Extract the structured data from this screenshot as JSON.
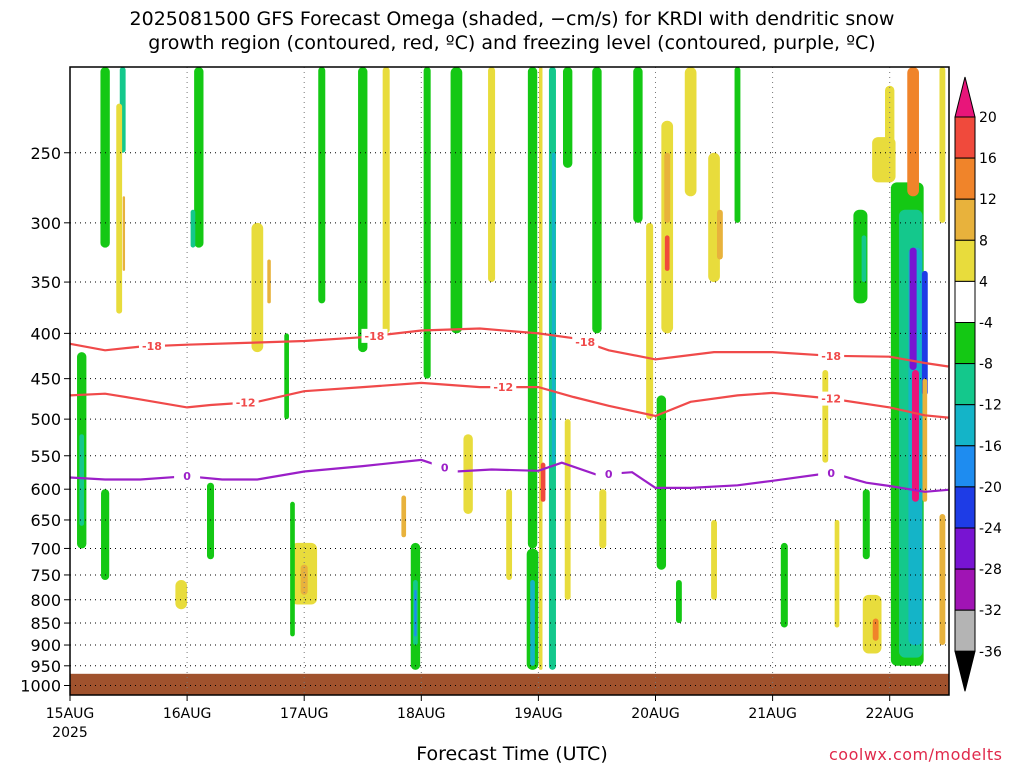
{
  "title_line1": "2025081500 GFS Forecast Omega (shaded, −cm/s) for KRDI with dendritic snow",
  "title_line2": "growth region (contoured, red, ºC) and freezing level (contoured, purple, ºC)",
  "credit": "coolwx.com/modelts",
  "chart_data": {
    "type": "heatmap",
    "title": "2025081500 GFS Forecast Omega (shaded, −cm/s) for KRDI with dendritic snow growth region (contoured, red, ºC) and freezing level (contoured, purple, ºC)",
    "xlabel": "Forecast Time (UTC)",
    "ylabel": "",
    "x_ticks": [
      "15AUG",
      "16AUG",
      "17AUG",
      "18AUG",
      "19AUG",
      "20AUG",
      "21AUG",
      "22AUG"
    ],
    "x_tick_sub": "2025",
    "x_range": [
      0,
      7.5
    ],
    "y_ticks": [
      250,
      300,
      350,
      400,
      450,
      500,
      550,
      600,
      650,
      700,
      750,
      800,
      850,
      900,
      950,
      1000
    ],
    "y_range_hPa": [
      200,
      1025
    ],
    "y_axis_reversed": true,
    "grid": "dotted",
    "colorbar": {
      "labels": [
        20,
        16,
        12,
        8,
        4,
        -4,
        -8,
        -12,
        -16,
        -20,
        -24,
        -28,
        -32,
        -36
      ],
      "bins": [
        {
          "min": 20,
          "max": null,
          "color": "#e8157a"
        },
        {
          "min": 16,
          "max": 20,
          "color": "#f04a3c"
        },
        {
          "min": 12,
          "max": 16,
          "color": "#f0842a"
        },
        {
          "min": 8,
          "max": 12,
          "color": "#e8b23c"
        },
        {
          "min": 4,
          "max": 8,
          "color": "#e8dc3c"
        },
        {
          "min": -4,
          "max": 4,
          "color": "#ffffff"
        },
        {
          "min": -8,
          "max": -4,
          "color": "#14c814"
        },
        {
          "min": -12,
          "max": -8,
          "color": "#14c88c"
        },
        {
          "min": -16,
          "max": -12,
          "color": "#14b4c8"
        },
        {
          "min": -20,
          "max": -16,
          "color": "#1e8cf0"
        },
        {
          "min": -24,
          "max": -20,
          "color": "#1e3ce6"
        },
        {
          "min": -28,
          "max": -24,
          "color": "#7814d2"
        },
        {
          "min": -32,
          "max": -28,
          "color": "#a014b4"
        },
        {
          "min": -36,
          "max": -32,
          "color": "#b4b4b4"
        },
        {
          "min": null,
          "max": -36,
          "color": "#000000"
        }
      ]
    },
    "ground_color": "#a0522d",
    "ground_pressure_hPa": 970,
    "contours": [
      {
        "name": "-18",
        "color": "#f04a4a",
        "days": [
          0,
          0.3,
          0.6,
          1.0,
          1.5,
          2.0,
          2.5,
          3.0,
          3.5,
          4.0,
          4.3,
          4.6,
          5.0,
          5.5,
          6.0,
          6.5,
          7.0,
          7.3,
          7.5
        ],
        "pressure_hPa": [
          411,
          418,
          414,
          412,
          410,
          408,
          404,
          397,
          395,
          400,
          405,
          418,
          428,
          420,
          420,
          424,
          425,
          432,
          436
        ],
        "labels": [
          {
            "day": 0.7,
            "text": "-18"
          },
          {
            "day": 2.6,
            "text": "-18"
          },
          {
            "day": 4.4,
            "text": "-18"
          },
          {
            "day": 6.5,
            "text": "-18"
          }
        ]
      },
      {
        "name": "-12",
        "color": "#f04a4a",
        "days": [
          0,
          0.3,
          0.6,
          1.0,
          1.2,
          1.6,
          2.0,
          2.5,
          3.0,
          3.5,
          4.0,
          4.3,
          4.6,
          5.0,
          5.3,
          5.7,
          6.0,
          6.5,
          7.0,
          7.3,
          7.5
        ],
        "pressure_hPa": [
          470,
          468,
          475,
          485,
          482,
          478,
          465,
          460,
          455,
          460,
          460,
          472,
          483,
          496,
          478,
          470,
          467,
          474,
          485,
          495,
          498
        ],
        "labels": [
          {
            "day": 1.5,
            "text": "-12"
          },
          {
            "day": 3.7,
            "text": "-12"
          },
          {
            "day": 6.5,
            "text": "-12"
          }
        ]
      },
      {
        "name": "0",
        "color": "#9b1fc8",
        "days": [
          0,
          0.3,
          0.6,
          1.0,
          1.3,
          1.6,
          2.0,
          2.5,
          3.0,
          3.3,
          3.6,
          4.0,
          4.2,
          4.5,
          4.8,
          5.0,
          5.3,
          5.7,
          6.0,
          6.5,
          6.8,
          7.0,
          7.3,
          7.5
        ],
        "pressure_hPa": [
          582,
          585,
          585,
          580,
          585,
          585,
          573,
          565,
          556,
          573,
          570,
          572,
          560,
          578,
          574,
          598,
          598,
          594,
          587,
          575,
          590,
          595,
          604,
          601
        ],
        "labels": [
          {
            "day": 1.0,
            "text": "0"
          },
          {
            "day": 3.2,
            "text": "0"
          },
          {
            "day": 4.6,
            "text": "0"
          },
          {
            "day": 6.5,
            "text": "0"
          }
        ]
      }
    ],
    "omega_features": [
      {
        "day": 0.1,
        "p_top": 420,
        "p_bot": 700,
        "width": 0.08,
        "bin": -8
      },
      {
        "day": 0.1,
        "p_top": 520,
        "p_bot": 660,
        "width": 0.04,
        "bin": -12
      },
      {
        "day": 0.3,
        "p_top": 200,
        "p_bot": 320,
        "width": 0.08,
        "bin": -8
      },
      {
        "day": 0.45,
        "p_top": 200,
        "p_bot": 250,
        "width": 0.05,
        "bin": -12
      },
      {
        "day": 0.3,
        "p_top": 600,
        "p_bot": 760,
        "width": 0.07,
        "bin": -8
      },
      {
        "day": 0.42,
        "p_top": 220,
        "p_bot": 380,
        "width": 0.05,
        "bin": 4
      },
      {
        "day": 0.46,
        "p_top": 280,
        "p_bot": 340,
        "width": 0.02,
        "bin": 8
      },
      {
        "day": 0.95,
        "p_top": 760,
        "p_bot": 820,
        "width": 0.1,
        "bin": 4
      },
      {
        "day": 1.1,
        "p_top": 200,
        "p_bot": 320,
        "width": 0.08,
        "bin": -8
      },
      {
        "day": 1.05,
        "p_top": 290,
        "p_bot": 320,
        "width": 0.04,
        "bin": -12
      },
      {
        "day": 1.2,
        "p_top": 590,
        "p_bot": 720,
        "width": 0.06,
        "bin": -8
      },
      {
        "day": 1.6,
        "p_top": 300,
        "p_bot": 420,
        "width": 0.1,
        "bin": 4
      },
      {
        "day": 1.7,
        "p_top": 330,
        "p_bot": 370,
        "width": 0.03,
        "bin": 8
      },
      {
        "day": 1.85,
        "p_top": 400,
        "p_bot": 500,
        "width": 0.04,
        "bin": -8
      },
      {
        "day": 2.15,
        "p_top": 200,
        "p_bot": 370,
        "width": 0.06,
        "bin": -8
      },
      {
        "day": 2.0,
        "p_top": 690,
        "p_bot": 810,
        "width": 0.22,
        "bin": 4
      },
      {
        "day": 2.0,
        "p_top": 730,
        "p_bot": 790,
        "width": 0.06,
        "bin": 8
      },
      {
        "day": 1.9,
        "p_top": 620,
        "p_bot": 880,
        "width": 0.04,
        "bin": -8
      },
      {
        "day": 2.5,
        "p_top": 200,
        "p_bot": 420,
        "width": 0.08,
        "bin": -8
      },
      {
        "day": 2.7,
        "p_top": 200,
        "p_bot": 400,
        "width": 0.06,
        "bin": 4
      },
      {
        "day": 2.95,
        "p_top": 690,
        "p_bot": 960,
        "width": 0.08,
        "bin": -8
      },
      {
        "day": 2.95,
        "p_top": 760,
        "p_bot": 900,
        "width": 0.04,
        "bin": -12
      },
      {
        "day": 2.95,
        "p_top": 780,
        "p_bot": 880,
        "width": 0.02,
        "bin": -20
      },
      {
        "day": 2.85,
        "p_top": 610,
        "p_bot": 680,
        "width": 0.04,
        "bin": 8
      },
      {
        "day": 3.05,
        "p_top": 200,
        "p_bot": 450,
        "width": 0.06,
        "bin": -8
      },
      {
        "day": 3.3,
        "p_top": 200,
        "p_bot": 400,
        "width": 0.1,
        "bin": -8
      },
      {
        "day": 3.4,
        "p_top": 520,
        "p_bot": 640,
        "width": 0.08,
        "bin": 4
      },
      {
        "day": 3.6,
        "p_top": 200,
        "p_bot": 350,
        "width": 0.06,
        "bin": 4
      },
      {
        "day": 3.75,
        "p_top": 600,
        "p_bot": 760,
        "width": 0.05,
        "bin": 4
      },
      {
        "day": 3.95,
        "p_top": 200,
        "p_bot": 700,
        "width": 0.08,
        "bin": -8
      },
      {
        "day": 3.95,
        "p_top": 700,
        "p_bot": 960,
        "width": 0.1,
        "bin": -8
      },
      {
        "day": 3.95,
        "p_top": 760,
        "p_bot": 950,
        "width": 0.04,
        "bin": -16
      },
      {
        "day": 4.02,
        "p_top": 200,
        "p_bot": 960,
        "width": 0.03,
        "bin": 4
      },
      {
        "day": 4.04,
        "p_top": 560,
        "p_bot": 620,
        "width": 0.04,
        "bin": 16
      },
      {
        "day": 4.12,
        "p_top": 200,
        "p_bot": 960,
        "width": 0.06,
        "bin": -12
      },
      {
        "day": 4.13,
        "p_top": 250,
        "p_bot": 560,
        "width": 0.03,
        "bin": -16
      },
      {
        "day": 4.25,
        "p_top": 200,
        "p_bot": 260,
        "width": 0.08,
        "bin": -8
      },
      {
        "day": 4.25,
        "p_top": 500,
        "p_bot": 800,
        "width": 0.05,
        "bin": 4
      },
      {
        "day": 4.5,
        "p_top": 200,
        "p_bot": 400,
        "width": 0.08,
        "bin": -8
      },
      {
        "day": 4.55,
        "p_top": 600,
        "p_bot": 700,
        "width": 0.06,
        "bin": 4
      },
      {
        "day": 4.85,
        "p_top": 200,
        "p_bot": 300,
        "width": 0.08,
        "bin": -8
      },
      {
        "day": 4.95,
        "p_top": 300,
        "p_bot": 500,
        "width": 0.06,
        "bin": 4
      },
      {
        "day": 5.1,
        "p_top": 230,
        "p_bot": 400,
        "width": 0.1,
        "bin": 4
      },
      {
        "day": 5.1,
        "p_top": 250,
        "p_bot": 300,
        "width": 0.05,
        "bin": 8
      },
      {
        "day": 5.1,
        "p_top": 310,
        "p_bot": 340,
        "width": 0.04,
        "bin": 16
      },
      {
        "day": 5.05,
        "p_top": 470,
        "p_bot": 740,
        "width": 0.08,
        "bin": -8
      },
      {
        "day": 5.2,
        "p_top": 760,
        "p_bot": 850,
        "width": 0.05,
        "bin": -8
      },
      {
        "day": 5.3,
        "p_top": 200,
        "p_bot": 280,
        "width": 0.1,
        "bin": 4
      },
      {
        "day": 5.5,
        "p_top": 250,
        "p_bot": 350,
        "width": 0.1,
        "bin": 4
      },
      {
        "day": 5.55,
        "p_top": 290,
        "p_bot": 330,
        "width": 0.05,
        "bin": 8
      },
      {
        "day": 5.7,
        "p_top": 200,
        "p_bot": 300,
        "width": 0.05,
        "bin": -8
      },
      {
        "day": 5.5,
        "p_top": 650,
        "p_bot": 800,
        "width": 0.05,
        "bin": 4
      },
      {
        "day": 6.1,
        "p_top": 690,
        "p_bot": 860,
        "width": 0.06,
        "bin": -8
      },
      {
        "day": 6.45,
        "p_top": 440,
        "p_bot": 560,
        "width": 0.05,
        "bin": 4
      },
      {
        "day": 6.55,
        "p_top": 650,
        "p_bot": 860,
        "width": 0.04,
        "bin": 4
      },
      {
        "day": 6.75,
        "p_top": 290,
        "p_bot": 370,
        "width": 0.12,
        "bin": -8
      },
      {
        "day": 6.78,
        "p_top": 310,
        "p_bot": 350,
        "width": 0.04,
        "bin": -12
      },
      {
        "day": 6.8,
        "p_top": 600,
        "p_bot": 720,
        "width": 0.06,
        "bin": -8
      },
      {
        "day": 6.85,
        "p_top": 790,
        "p_bot": 920,
        "width": 0.16,
        "bin": 4
      },
      {
        "day": 6.88,
        "p_top": 840,
        "p_bot": 890,
        "width": 0.05,
        "bin": 12
      },
      {
        "day": 6.95,
        "p_top": 240,
        "p_bot": 270,
        "width": 0.2,
        "bin": 4
      },
      {
        "day": 7.0,
        "p_top": 210,
        "p_bot": 260,
        "width": 0.08,
        "bin": 4
      },
      {
        "day": 7.15,
        "p_top": 270,
        "p_bot": 950,
        "width": 0.28,
        "bin": -8
      },
      {
        "day": 7.18,
        "p_top": 290,
        "p_bot": 930,
        "width": 0.2,
        "bin": -12
      },
      {
        "day": 7.22,
        "p_top": 320,
        "p_bot": 900,
        "width": 0.12,
        "bin": -16
      },
      {
        "day": 7.2,
        "p_top": 320,
        "p_bot": 440,
        "width": 0.06,
        "bin": -28
      },
      {
        "day": 7.3,
        "p_top": 340,
        "p_bot": 470,
        "width": 0.05,
        "bin": -24
      },
      {
        "day": 7.3,
        "p_top": 450,
        "p_bot": 620,
        "width": 0.04,
        "bin": 8
      },
      {
        "day": 7.22,
        "p_top": 440,
        "p_bot": 620,
        "width": 0.06,
        "bin": 20
      },
      {
        "day": 7.2,
        "p_top": 200,
        "p_bot": 280,
        "width": 0.1,
        "bin": 12
      },
      {
        "day": 7.45,
        "p_top": 640,
        "p_bot": 900,
        "width": 0.05,
        "bin": 8
      },
      {
        "day": 7.45,
        "p_top": 200,
        "p_bot": 300,
        "width": 0.05,
        "bin": 4
      }
    ]
  }
}
